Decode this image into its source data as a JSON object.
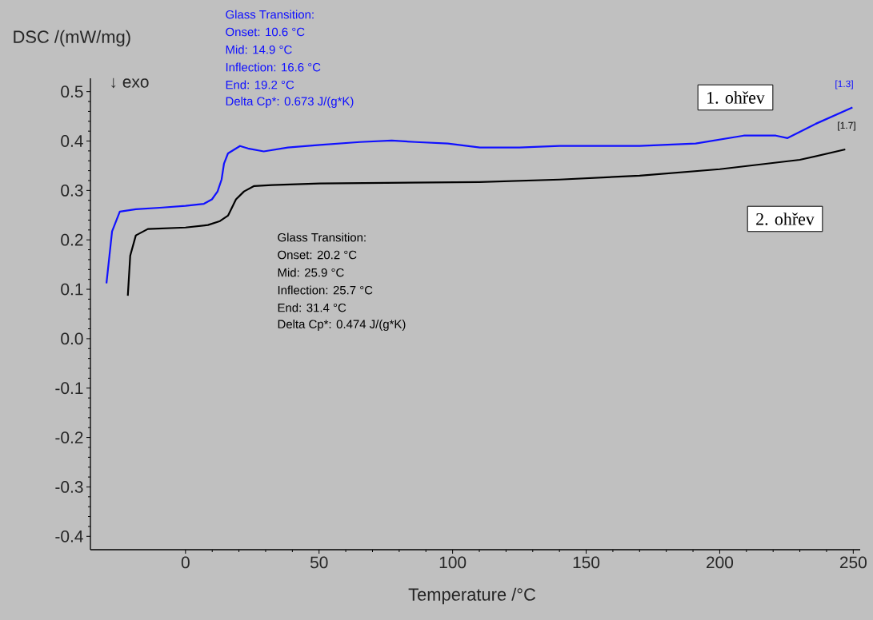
{
  "chart_data": {
    "type": "line",
    "ylabel": "DSC /(mW/mg)",
    "xlabel": "Temperature /°C",
    "xlim": [
      -35.6,
      252.6
    ],
    "ylim": [
      -0.427,
      0.527
    ],
    "xticks": [
      0,
      50,
      100,
      150,
      200,
      250
    ],
    "yticks": [
      -0.4,
      -0.3,
      -0.2,
      -0.1,
      {
        "value": 0,
        "label": "0.0"
      },
      0.1,
      0.2,
      0.3,
      0.4,
      0.5
    ],
    "line_style": "solid",
    "series": [
      {
        "name": "1. ohřev",
        "color": "#1010ff",
        "x": [
          -29.6,
          -27.5,
          -24.6,
          -18.6,
          -9.6,
          0,
          6.9,
          9.9,
          12,
          13.5,
          14.4,
          15.9,
          20.4,
          23.4,
          29.3,
          38.3,
          50.3,
          65.3,
          77.2,
          86.2,
          98.2,
          110.2,
          125,
          140,
          170,
          191,
          209,
          221,
          225.4,
          236,
          249.7
        ],
        "values": [
          0.112,
          0.217,
          0.257,
          0.262,
          0.265,
          0.269,
          0.273,
          0.282,
          0.298,
          0.322,
          0.354,
          0.375,
          0.39,
          0.385,
          0.379,
          0.387,
          0.392,
          0.398,
          0.401,
          0.398,
          0.395,
          0.387,
          0.387,
          0.39,
          0.39,
          0.395,
          0.411,
          0.411,
          0.406,
          0.435,
          0.468
        ]
      },
      {
        "name": "2. ohřev",
        "color": "#000000",
        "x": [
          -21.6,
          -20.7,
          -18.6,
          -14.1,
          0,
          8.4,
          12.9,
          15.9,
          18.9,
          21.9,
          25.7,
          32.3,
          50.3,
          110,
          140,
          170,
          200,
          230,
          247
        ],
        "values": [
          0.087,
          0.168,
          0.209,
          0.222,
          0.225,
          0.23,
          0.238,
          0.249,
          0.282,
          0.298,
          0.309,
          0.311,
          0.314,
          0.317,
          0.322,
          0.33,
          0.343,
          0.362,
          0.383
        ]
      }
    ],
    "annotations": [
      "Glass Transition:",
      "Onset:  10.6 °C",
      "Mid:  14.9 °C",
      "Inflection:  16.6 °C",
      "End:  19.2 °C",
      "Delta Cp*:  0.673 J/(g*K)",
      "Glass Transition:",
      "Onset:  20.2 °C",
      "Mid:  25.9 °C",
      "Inflection:  25.7 °C",
      "End:  31.4 °C",
      "Delta Cp*:  0.474 J/(g*K)",
      "[1.3]",
      "[1.7]",
      "↓ exo"
    ]
  }
}
